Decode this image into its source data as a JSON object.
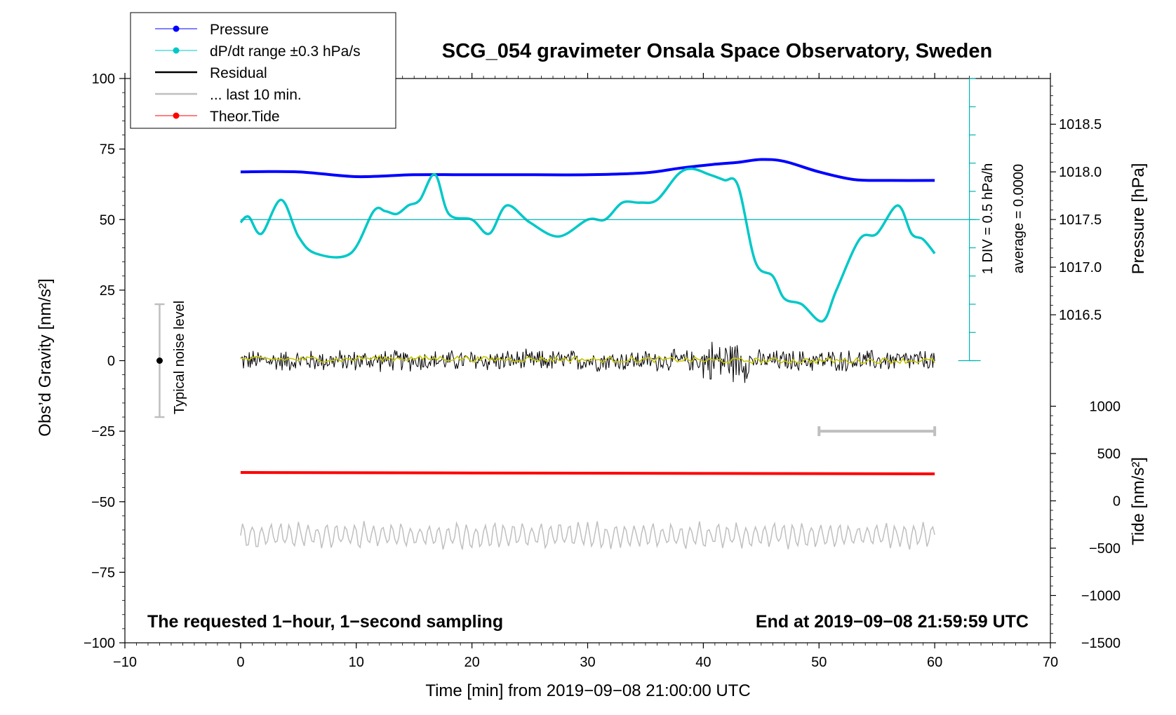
{
  "chart_data": {
    "type": "line",
    "title": "SCG_054 gravimeter Onsala Space Observatory, Sweden",
    "xlabel": "Time [min] from 2019−09−08 21:00:00 UTC",
    "ylabel": "Obs’d Gravity [nm/s²]",
    "xlim": [
      -10,
      70
    ],
    "ylim": [
      -100,
      100
    ],
    "x_ticks": [
      "−10",
      "0",
      "10",
      "20",
      "30",
      "40",
      "50",
      "60",
      "70"
    ],
    "y_ticks": [
      "100",
      "75",
      "50",
      "25",
      "0",
      "−25",
      "−50",
      "−75",
      "−100"
    ],
    "pressure_axis": {
      "label": "Pressure [hPa]",
      "ticks": [
        "1018.5",
        "1018.0",
        "1017.5",
        "1017.0",
        "1016.5"
      ],
      "range": [
        1016.0,
        1018.98
      ]
    },
    "tide_axis": {
      "label": "Tide [nm/s²]",
      "ticks": [
        "1000",
        "500",
        "0",
        "−500",
        "−1000",
        "−1500"
      ],
      "range": [
        -1500,
        1500
      ]
    },
    "dpdt_axis_label": "1 DIV = 0.5 hPa/h",
    "dpdt_average_label": "average = 0.0000",
    "noise_label": "Typical noise level",
    "footer_left": "The requested 1−hour, 1−second sampling",
    "footer_right": "End at 2019−09−08 21:59:59 UTC",
    "legend": [
      {
        "label": "Pressure",
        "color": "#0000ff",
        "marker": "dot"
      },
      {
        "label": "dP/dt range ±0.3 hPa/s",
        "color": "#00c8c8",
        "marker": "dot"
      },
      {
        "label": "Residual",
        "color": "#000000",
        "marker": "line"
      },
      {
        "label": "... last 10 min.",
        "color": "#bfbfbf",
        "marker": "line"
      },
      {
        "label": "Theor.Tide",
        "color": "#ff0000",
        "marker": "dot"
      }
    ],
    "series": [
      {
        "name": "Pressure",
        "axis": "pressure",
        "color": "#0000ff",
        "x": [
          0,
          5,
          10,
          15,
          20,
          25,
          30,
          35,
          38,
          41,
          43,
          45,
          47,
          50,
          53,
          56,
          60
        ],
        "y": [
          1018.0,
          1018.0,
          1017.95,
          1017.97,
          1017.97,
          1017.97,
          1017.97,
          1017.99,
          1018.04,
          1018.08,
          1018.1,
          1018.13,
          1018.11,
          1018.0,
          1017.92,
          1017.91,
          1017.91
        ]
      },
      {
        "name": "dP/dt range ±0.3 hPa/s",
        "axis": "gravity",
        "color": "#00c8c8",
        "x": [
          0,
          0.7,
          1.8,
          3.5,
          5,
          6.5,
          9.5,
          11.5,
          12.5,
          13.5,
          14.5,
          15.5,
          16.8,
          18,
          20,
          21.5,
          23,
          25,
          27.5,
          30,
          31.5,
          33,
          34.5,
          36,
          37.8,
          39,
          40.5,
          41.8,
          43,
          44.5,
          46,
          47,
          48.5,
          50.3,
          51.5,
          53.5,
          55,
          56.8,
          58,
          59,
          60
        ],
        "y": [
          49,
          51,
          45,
          57,
          44,
          38,
          38,
          53,
          53,
          52,
          55,
          57,
          66,
          52,
          50,
          45,
          55,
          49,
          44,
          50,
          50,
          56,
          56,
          57,
          66,
          68,
          66,
          64,
          62,
          35,
          30,
          22,
          20,
          14,
          25,
          43,
          45,
          55,
          45,
          43,
          38
        ]
      },
      {
        "name": "Residual",
        "axis": "gravity",
        "color": "#000000",
        "x_range": [
          0,
          60
        ],
        "typical_amplitude": 4,
        "burst_x_range": [
          40,
          44
        ],
        "burst_amplitude": 8
      },
      {
        "name": "Residual smoothed",
        "axis": "gravity",
        "color": "#c8c800",
        "x": [
          0,
          10,
          20,
          30,
          40,
          50,
          60
        ],
        "y": [
          0.5,
          0.8,
          0.5,
          0.3,
          0.0,
          0.0,
          -0.2
        ]
      },
      {
        "name": "... last 10 min.",
        "axis": "gravity",
        "color": "#bfbfbf",
        "x_range": [
          0,
          60
        ],
        "center": -62,
        "amplitude": 4
      },
      {
        "name": "Theor.Tide",
        "axis": "tide",
        "color": "#ff0000",
        "x": [
          0,
          20,
          40,
          60
        ],
        "y": [
          300,
          295,
          290,
          285
        ]
      }
    ],
    "last10_bar": {
      "x": [
        50,
        60
      ],
      "color": "#bfbfbf"
    },
    "noise_bar": {
      "x": -7,
      "y": [
        -20,
        20
      ]
    },
    "grid": false,
    "legend_placement": "top-left"
  }
}
